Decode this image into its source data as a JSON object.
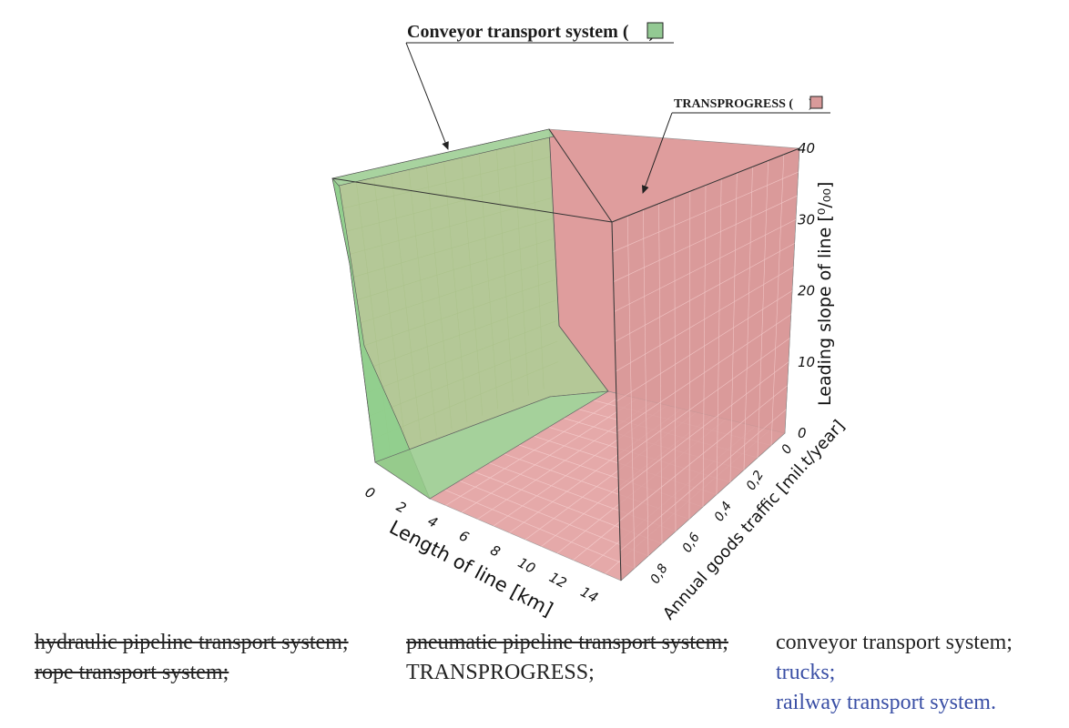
{
  "chart_data": {
    "type": "3d-surface",
    "annotations": [
      {
        "text": "Conveyor transport system (",
        "closing": ")",
        "swatch_color": "#93c993"
      },
      {
        "text": "TRANSPROGRESS (",
        "closing": ")",
        "swatch_color": "#d99a9a"
      }
    ],
    "x_axis": {
      "label": "Length of line [km]",
      "ticks": [
        "0",
        "2",
        "4",
        "6",
        "8",
        "10",
        "12",
        "14"
      ],
      "range": [
        0,
        15
      ]
    },
    "y_axis": {
      "label": "Annual goods traffic [mil.t/year]",
      "ticks": [
        "0",
        "0,2",
        "0,4",
        "0,6",
        "0,8"
      ],
      "range": [
        0,
        0.9
      ]
    },
    "z_axis": {
      "label": "Leading slope of line [⁰/₀₀]",
      "ticks": [
        "0",
        "10",
        "20",
        "30",
        "40"
      ],
      "range": [
        0,
        40
      ]
    },
    "regions": [
      {
        "name": "Conveyor transport system",
        "color": "#8cc98c",
        "description_points": {
          "length_km_max": 4,
          "slope_min": 0,
          "slope_max": 40
        }
      },
      {
        "name": "TRANSPROGRESS",
        "color": "#d98c8c",
        "description_points": {
          "length_km_min": 4,
          "slope_min": 0,
          "slope_max": 40
        }
      }
    ],
    "grid": true
  },
  "legend": {
    "col1": [
      {
        "text": "hydraulic pipeline transport system;",
        "style": "struck"
      },
      {
        "text": "rope transport system;",
        "style": "struck"
      }
    ],
    "col2": [
      {
        "text": "pneumatic pipeline transport system;",
        "style": "struck"
      },
      {
        "text": "TRANSPROGRESS;",
        "style": "plain"
      }
    ],
    "col3": [
      {
        "text": "conveyor transport system;",
        "style": "plain"
      },
      {
        "text": "trucks;",
        "style": "blue"
      },
      {
        "text": "railway transport system.",
        "style": "blue"
      }
    ]
  }
}
